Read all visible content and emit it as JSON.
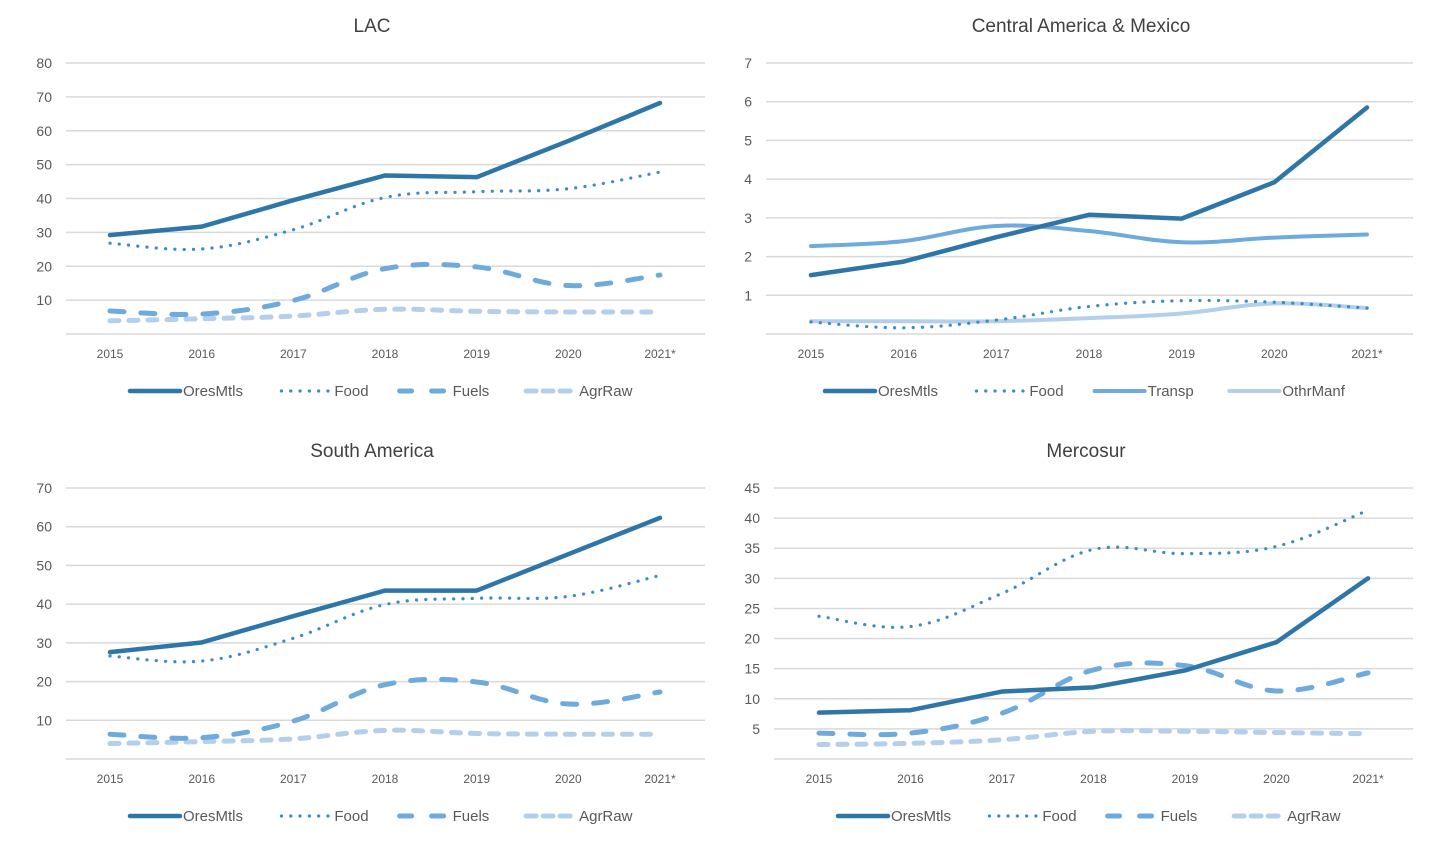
{
  "colors": {
    "ores": "#2e75a8",
    "food": "#3a8ccb",
    "fuels": "#6eaadc",
    "agr": "#b4cfec",
    "transp": "#6eaadc",
    "othr": "#b4cfec",
    "grid": "#d9d9d9",
    "text": "#595959"
  },
  "chart_data": [
    {
      "type": "line",
      "title": "LAC",
      "xlabel": "",
      "ylabel": "",
      "categories": [
        "2015",
        "2016",
        "2017",
        "2018",
        "2019",
        "2020",
        "2021*"
      ],
      "ylim": [
        0,
        80
      ],
      "yticks": [
        10,
        20,
        30,
        40,
        50,
        60,
        70,
        80
      ],
      "grid": true,
      "legend": "bottom",
      "series": [
        {
          "name": "OresMtls",
          "style": "solid",
          "color_key": "ores",
          "values": [
            29.2,
            31.7,
            39.5,
            46.8,
            46.3,
            57.0,
            68.2
          ]
        },
        {
          "name": "Food",
          "style": "dotted",
          "color_key": "food",
          "values": [
            26.8,
            25.1,
            30.8,
            40.3,
            42.0,
            42.9,
            47.8
          ]
        },
        {
          "name": "Fuels",
          "style": "dashed",
          "color_key": "fuels",
          "values": [
            6.8,
            5.9,
            9.9,
            19.3,
            19.8,
            14.3,
            17.4
          ]
        },
        {
          "name": "AgrRaw",
          "style": "dashed",
          "color_key": "agr",
          "values": [
            3.9,
            4.5,
            5.3,
            7.3,
            6.7,
            6.5,
            6.5
          ]
        }
      ]
    },
    {
      "type": "line",
      "title": "Central America & Mexico",
      "xlabel": "",
      "ylabel": "",
      "categories": [
        "2015",
        "2016",
        "2017",
        "2018",
        "2019",
        "2020",
        "2021*"
      ],
      "ylim": [
        0,
        7
      ],
      "yticks": [
        1,
        2,
        3,
        4,
        5,
        6,
        7
      ],
      "grid": true,
      "legend": "bottom",
      "series": [
        {
          "name": "OresMtls",
          "style": "solid",
          "color_key": "ores",
          "values": [
            1.52,
            1.87,
            2.5,
            3.08,
            2.98,
            3.92,
            5.85
          ]
        },
        {
          "name": "Food",
          "style": "dotted",
          "color_key": "food",
          "values": [
            0.31,
            0.16,
            0.36,
            0.71,
            0.86,
            0.82,
            0.67
          ]
        },
        {
          "name": "Transp",
          "style": "solid",
          "color_key": "transp",
          "values": [
            2.27,
            2.4,
            2.79,
            2.66,
            2.37,
            2.49,
            2.57
          ]
        },
        {
          "name": "OthrManf",
          "style": "solid",
          "color_key": "othr",
          "values": [
            0.33,
            0.33,
            0.33,
            0.41,
            0.53,
            0.79,
            0.67
          ]
        }
      ]
    },
    {
      "type": "line",
      "title": "South America",
      "xlabel": "",
      "ylabel": "",
      "categories": [
        "2015",
        "2016",
        "2017",
        "2018",
        "2019",
        "2020",
        "2021*"
      ],
      "ylim": [
        0,
        70
      ],
      "yticks": [
        10,
        20,
        30,
        40,
        50,
        60,
        70
      ],
      "grid": true,
      "legend": "bottom",
      "series": [
        {
          "name": "OresMtls",
          "style": "solid",
          "color_key": "ores",
          "values": [
            27.6,
            30.1,
            36.9,
            43.5,
            43.5,
            52.9,
            62.3
          ]
        },
        {
          "name": "Food",
          "style": "dotted",
          "color_key": "food",
          "values": [
            26.6,
            25.3,
            31.2,
            39.9,
            41.5,
            42.0,
            47.4
          ]
        },
        {
          "name": "Fuels",
          "style": "dashed",
          "color_key": "fuels",
          "values": [
            6.4,
            5.5,
            9.8,
            19.2,
            19.9,
            14.2,
            17.3
          ]
        },
        {
          "name": "AgrRaw",
          "style": "dashed",
          "color_key": "agr",
          "values": [
            4.0,
            4.5,
            5.2,
            7.4,
            6.6,
            6.4,
            6.4
          ]
        }
      ]
    },
    {
      "type": "line",
      "title": "Mercosur",
      "xlabel": "",
      "ylabel": "",
      "categories": [
        "2015",
        "2016",
        "2017",
        "2018",
        "2019",
        "2020",
        "2021*"
      ],
      "ylim": [
        0,
        45
      ],
      "yticks": [
        5,
        10,
        15,
        20,
        25,
        30,
        35,
        40,
        45
      ],
      "grid": true,
      "legend": "bottom",
      "series": [
        {
          "name": "OresMtls",
          "style": "solid",
          "color_key": "ores",
          "values": [
            7.7,
            8.1,
            11.2,
            11.9,
            14.7,
            19.4,
            30.0
          ]
        },
        {
          "name": "Food",
          "style": "dotted",
          "color_key": "food",
          "values": [
            23.7,
            22.0,
            27.5,
            34.8,
            34.1,
            35.3,
            41.3
          ]
        },
        {
          "name": "Fuels",
          "style": "dashed",
          "color_key": "fuels",
          "values": [
            4.3,
            4.3,
            7.6,
            14.8,
            15.5,
            11.3,
            14.3
          ]
        },
        {
          "name": "AgrRaw",
          "style": "dashed",
          "color_key": "agr",
          "values": [
            2.4,
            2.6,
            3.2,
            4.6,
            4.6,
            4.4,
            4.2
          ]
        }
      ]
    }
  ]
}
